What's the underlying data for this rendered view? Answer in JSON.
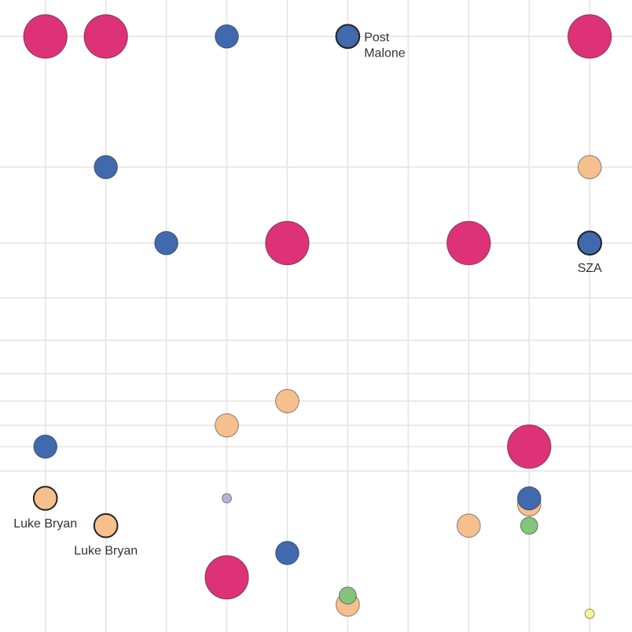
{
  "chart_data": {
    "type": "scatter",
    "title": "",
    "xlabel": "",
    "ylabel": "",
    "grid": true,
    "x_gridlines": [
      1,
      2,
      3,
      4,
      5,
      6,
      7,
      8,
      9,
      10
    ],
    "y_gridlines": [
      1,
      3.15,
      4.4,
      5.3,
      6.0,
      6.55,
      7.0,
      7.4,
      7.75,
      8.15
    ],
    "xlim": [
      0.25,
      10.7
    ],
    "ylim": [
      0.4,
      10.8
    ],
    "colors": {
      "pink": "#dd3178",
      "blue": "#4169ad",
      "peach": "#f5c08e",
      "green": "#84c47b",
      "lavender": "#b9b2d8",
      "yellow": "#faf59a"
    },
    "points": [
      {
        "x": 1,
        "y": 1.0,
        "size": 28,
        "color": "pink"
      },
      {
        "x": 2,
        "y": 1.0,
        "size": 28,
        "color": "pink"
      },
      {
        "x": 4,
        "y": 1.0,
        "size": 15,
        "color": "blue"
      },
      {
        "x": 6,
        "y": 1.0,
        "size": 15,
        "color": "blue",
        "highlight": true,
        "label": "Post Malone"
      },
      {
        "x": 10,
        "y": 1.0,
        "size": 28,
        "color": "pink"
      },
      {
        "x": 2,
        "y": 3.15,
        "size": 15,
        "color": "blue"
      },
      {
        "x": 10,
        "y": 3.15,
        "size": 15,
        "color": "peach"
      },
      {
        "x": 3,
        "y": 4.4,
        "size": 15,
        "color": "blue"
      },
      {
        "x": 5,
        "y": 4.4,
        "size": 28,
        "color": "pink"
      },
      {
        "x": 8,
        "y": 4.4,
        "size": 28,
        "color": "pink"
      },
      {
        "x": 10,
        "y": 4.4,
        "size": 15,
        "color": "blue",
        "highlight": true,
        "label": "SZA"
      },
      {
        "x": 5,
        "y": 7.0,
        "size": 15,
        "color": "peach"
      },
      {
        "x": 4,
        "y": 7.4,
        "size": 15,
        "color": "peach"
      },
      {
        "x": 9,
        "y": 8.7,
        "size": 15,
        "color": "peach"
      },
      {
        "x": 1,
        "y": 7.75,
        "size": 15,
        "color": "blue"
      },
      {
        "x": 9,
        "y": 7.75,
        "size": 28,
        "color": "pink"
      },
      {
        "x": 1,
        "y": 8.6,
        "size": 15,
        "color": "peach",
        "highlight": true,
        "label": "Luke Bryan"
      },
      {
        "x": 4,
        "y": 8.6,
        "size": 6,
        "color": "lavender"
      },
      {
        "x": 9,
        "y": 8.6,
        "size": 15,
        "color": "blue"
      },
      {
        "x": 2,
        "y": 9.05,
        "size": 15,
        "color": "peach",
        "highlight": true,
        "label": "Luke Bryan"
      },
      {
        "x": 8,
        "y": 9.05,
        "size": 15,
        "color": "peach"
      },
      {
        "x": 9,
        "y": 9.05,
        "size": 11,
        "color": "green"
      },
      {
        "x": 5,
        "y": 9.5,
        "size": 15,
        "color": "blue"
      },
      {
        "x": 4,
        "y": 9.9,
        "size": 28,
        "color": "pink"
      },
      {
        "x": 6,
        "y": 10.35,
        "size": 15,
        "color": "peach"
      },
      {
        "x": 6,
        "y": 10.2,
        "size": 11,
        "color": "green"
      },
      {
        "x": 10,
        "y": 10.5,
        "size": 6,
        "color": "yellow"
      }
    ]
  }
}
